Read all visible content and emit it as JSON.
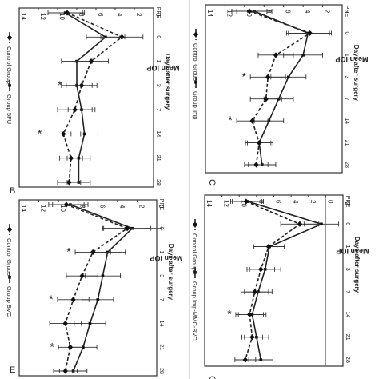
{
  "chart_data": [
    {
      "type": "line",
      "panel_letter": "B",
      "categories": [
        "PRE",
        "0",
        "1",
        "3",
        "7",
        "14",
        "21",
        "28"
      ],
      "ylabel": "Mean IOP",
      "xlabel": "Days after surgery",
      "ylim": [
        0,
        14
      ],
      "yticks": [
        "0",
        "2",
        "4",
        "6",
        "8",
        "10",
        "12",
        "14"
      ],
      "legend_position": "bottom",
      "series": [
        {
          "name": "Group 5FU",
          "values": [
            9.2,
            5.0,
            8.0,
            8.0,
            7.5,
            7.2,
            7.8,
            7.8
          ],
          "errors": [
            1.8,
            2.0,
            1.6,
            1.6,
            1.4,
            1.4,
            1.2,
            1.2
          ]
        },
        {
          "name": "Control Group",
          "values": [
            9.0,
            3.3,
            6.5,
            7.5,
            8.2,
            9.4,
            8.6,
            8.8
          ],
          "errors": [
            1.8,
            2.2,
            1.8,
            1.6,
            1.8,
            1.8,
            1.2,
            1.2
          ]
        }
      ],
      "annotations": [
        "*",
        "*"
      ]
    },
    {
      "type": "line",
      "panel_letter": "C",
      "categories": [
        "PRE",
        "0",
        "1",
        "3",
        "7",
        "14",
        "21",
        "28"
      ],
      "ylabel": "Mean IOP",
      "xlabel": "Days after surgery",
      "ylim": [
        0,
        14
      ],
      "yticks": [
        "0",
        "2",
        "4",
        "6",
        "8",
        "10",
        "12",
        "14"
      ],
      "legend_position": "bottom",
      "series": [
        {
          "name": "Group Imp",
          "values": [
            9.0,
            3.5,
            4.0,
            5.5,
            6.5,
            7.5,
            8.5,
            8.2
          ],
          "errors": [
            1.8,
            2.2,
            2.0,
            1.8,
            1.5,
            1.5,
            1.4,
            1.4
          ]
        },
        {
          "name": "Control Group",
          "values": [
            9.5,
            3.3,
            6.8,
            7.6,
            7.8,
            9.2,
            8.5,
            8.8
          ],
          "errors": [
            1.8,
            2.2,
            1.8,
            1.8,
            1.6,
            1.6,
            1.2,
            1.2
          ]
        }
      ],
      "annotations": [
        "*",
        "*"
      ]
    },
    {
      "type": "line",
      "panel_letter": "E",
      "categories": [
        "PRE",
        "0",
        "1",
        "3",
        "7",
        "14",
        "21",
        "28"
      ],
      "ylabel": "Mean IOP",
      "xlabel": "Days after surgery",
      "ylim": [
        0,
        14
      ],
      "yticks": [
        "0",
        "2",
        "4",
        "6",
        "8",
        "10",
        "12",
        "14"
      ],
      "legend_position": "bottom",
      "series": [
        {
          "name": "Group BVC",
          "values": [
            8.8,
            2.5,
            5.0,
            5.5,
            6.0,
            6.8,
            7.5,
            8.5
          ],
          "errors": [
            1.8,
            3.0,
            1.8,
            1.8,
            1.6,
            1.6,
            1.4,
            1.4
          ]
        },
        {
          "name": "Control Group",
          "values": [
            9.2,
            3.0,
            6.5,
            7.6,
            8.5,
            9.3,
            8.8,
            9.3
          ],
          "errors": [
            1.8,
            2.4,
            1.8,
            1.6,
            1.6,
            1.6,
            1.2,
            1.2
          ]
        }
      ],
      "annotations": [
        "*",
        "*",
        "*"
      ]
    },
    {
      "type": "line",
      "panel_letter": "G",
      "categories": [
        "PRE",
        "0",
        "1",
        "3",
        "7",
        "14",
        "21",
        "28"
      ],
      "ylabel": "Mean IOP",
      "xlabel": "Days after surgery",
      "ylim": [
        -2,
        14
      ],
      "yticks": [
        "-2",
        "0",
        "2",
        "4",
        "6",
        "8",
        "10",
        "12",
        "14"
      ],
      "legend_position": "bottom",
      "series": [
        {
          "name": "Group Imp-MMC-BVC",
          "values": [
            9.0,
            0.5,
            6.5,
            7.0,
            7.8,
            8.5,
            8.0,
            7.5
          ],
          "errors": [
            1.8,
            2.0,
            1.8,
            1.8,
            1.6,
            1.6,
            1.4,
            1.4
          ]
        },
        {
          "name": "Control Group",
          "values": [
            9.2,
            3.0,
            6.6,
            7.5,
            8.2,
            8.8,
            8.5,
            9.3
          ],
          "errors": [
            1.8,
            2.2,
            1.8,
            1.6,
            1.6,
            1.6,
            1.2,
            1.2
          ]
        }
      ],
      "annotations": [
        "*"
      ]
    }
  ]
}
